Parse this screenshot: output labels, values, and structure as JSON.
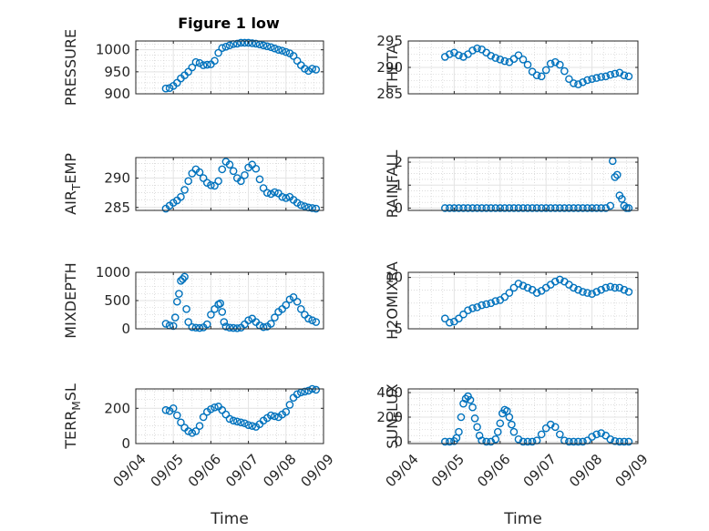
{
  "figure": {
    "title": "Figure 1 low"
  },
  "colors": {
    "marker": "#0072BD",
    "grid": "#e3e3e3",
    "axis": "#262626"
  },
  "time_ticks": [
    "09/04",
    "09/05",
    "09/06",
    "09/07",
    "09/08",
    "09/09"
  ],
  "chart_data": [
    {
      "type": "scatter",
      "title": "Figure 1 low",
      "ylabel": "PRESSURE",
      "xlabel": "",
      "xlim": [
        0,
        5
      ],
      "ylim": [
        900,
        1020
      ],
      "yticks": [
        900,
        950,
        1000
      ],
      "ytick_labels": [
        "900",
        "950",
        "1000"
      ],
      "xticks": [
        0,
        1,
        2,
        3,
        4,
        5
      ],
      "grid": true,
      "x": [
        0.8,
        0.9,
        1.0,
        1.1,
        1.2,
        1.3,
        1.4,
        1.5,
        1.6,
        1.7,
        1.8,
        1.9,
        2.0,
        2.1,
        2.2,
        2.3,
        2.4,
        2.5,
        2.6,
        2.7,
        2.8,
        2.9,
        3.0,
        3.1,
        3.2,
        3.3,
        3.4,
        3.5,
        3.6,
        3.7,
        3.8,
        3.9,
        4.0,
        4.1,
        4.2,
        4.3,
        4.4,
        4.5,
        4.6,
        4.7,
        4.8
      ],
      "y": [
        912,
        913,
        918,
        925,
        935,
        942,
        950,
        960,
        972,
        970,
        965,
        966,
        967,
        975,
        993,
        1004,
        1007,
        1010,
        1013,
        1014,
        1016,
        1016,
        1016,
        1015,
        1014,
        1012,
        1010,
        1008,
        1006,
        1003,
        1000,
        998,
        995,
        992,
        986,
        975,
        965,
        957,
        952,
        957,
        955
      ]
    },
    {
      "type": "scatter",
      "ylabel": "THETA",
      "xlabel": "",
      "xlim": [
        0,
        5
      ],
      "ylim": [
        285,
        295
      ],
      "yticks": [
        285,
        290,
        295
      ],
      "ytick_labels": [
        "285",
        "290",
        "295"
      ],
      "xticks": [
        0,
        1,
        2,
        3,
        4,
        5
      ],
      "grid": true,
      "x": [
        0.8,
        0.9,
        1.0,
        1.1,
        1.2,
        1.3,
        1.4,
        1.5,
        1.6,
        1.7,
        1.8,
        1.9,
        2.0,
        2.1,
        2.2,
        2.3,
        2.4,
        2.5,
        2.6,
        2.7,
        2.8,
        2.9,
        3.0,
        3.1,
        3.2,
        3.3,
        3.4,
        3.5,
        3.6,
        3.7,
        3.8,
        3.9,
        4.0,
        4.1,
        4.2,
        4.3,
        4.4,
        4.5,
        4.6,
        4.7,
        4.8
      ],
      "y": [
        292,
        292.5,
        292.8,
        292.3,
        292.0,
        292.5,
        293.2,
        293.6,
        293.4,
        292.8,
        292.2,
        291.8,
        291.5,
        291.2,
        291.0,
        291.6,
        292.3,
        291.5,
        290.5,
        289.2,
        288.5,
        288.3,
        289.5,
        290.7,
        291.0,
        290.5,
        289.3,
        287.8,
        287.0,
        286.8,
        287.2,
        287.6,
        287.8,
        288.0,
        288.2,
        288.3,
        288.6,
        288.8,
        289.0,
        288.5,
        288.3
      ]
    },
    {
      "type": "scatter",
      "ylabel": "AIR_TEMP",
      "ylabel_main": "AIR",
      "ylabel_sub": "T",
      "ylabel_tail": "EMP",
      "xlabel": "",
      "xlim": [
        0,
        5
      ],
      "ylim": [
        284.5,
        293.5
      ],
      "yticks": [
        285,
        290
      ],
      "ytick_labels": [
        "285",
        "290"
      ],
      "xticks": [
        0,
        1,
        2,
        3,
        4,
        5
      ],
      "grid": true,
      "x": [
        0.8,
        0.9,
        1.0,
        1.1,
        1.2,
        1.3,
        1.4,
        1.5,
        1.6,
        1.7,
        1.8,
        1.9,
        2.0,
        2.1,
        2.2,
        2.3,
        2.4,
        2.5,
        2.6,
        2.7,
        2.8,
        2.9,
        3.0,
        3.1,
        3.2,
        3.3,
        3.4,
        3.5,
        3.6,
        3.7,
        3.8,
        3.9,
        4.0,
        4.1,
        4.2,
        4.3,
        4.4,
        4.5,
        4.6,
        4.7,
        4.8
      ],
      "y": [
        284.8,
        285.3,
        285.8,
        286.2,
        286.8,
        288.0,
        289.5,
        290.8,
        291.5,
        291.0,
        290.0,
        289.2,
        288.8,
        288.7,
        289.5,
        291.5,
        292.8,
        292.3,
        291.2,
        290.0,
        289.5,
        290.5,
        291.8,
        292.3,
        291.6,
        289.8,
        288.3,
        287.5,
        287.3,
        287.6,
        287.4,
        286.8,
        286.6,
        286.8,
        286.3,
        285.8,
        285.4,
        285.2,
        285.0,
        284.9,
        284.8
      ]
    },
    {
      "type": "scatter",
      "ylabel": "RAINFALL",
      "xlabel": "",
      "xlim": [
        0,
        5
      ],
      "ylim": [
        -0.1,
        2.2
      ],
      "yticks": [
        0,
        1,
        2
      ],
      "ytick_labels": [
        "0",
        "1",
        "2"
      ],
      "xticks": [
        0,
        1,
        2,
        3,
        4,
        5
      ],
      "grid": true,
      "x": [
        0.8,
        0.9,
        1.0,
        1.1,
        1.2,
        1.3,
        1.4,
        1.5,
        1.6,
        1.7,
        1.8,
        1.9,
        2.0,
        2.1,
        2.2,
        2.3,
        2.4,
        2.5,
        2.6,
        2.7,
        2.8,
        2.9,
        3.0,
        3.1,
        3.2,
        3.3,
        3.4,
        3.5,
        3.6,
        3.7,
        3.8,
        3.9,
        4.0,
        4.1,
        4.2,
        4.3,
        4.4,
        4.45,
        4.5,
        4.55,
        4.6,
        4.65,
        4.7,
        4.75,
        4.8
      ],
      "y": [
        0,
        0,
        0,
        0,
        0,
        0,
        0,
        0,
        0,
        0,
        0,
        0,
        0,
        0,
        0,
        0,
        0,
        0,
        0,
        0,
        0,
        0,
        0,
        0,
        0,
        0,
        0,
        0,
        0,
        0,
        0,
        0,
        0,
        0,
        0,
        0,
        0.1,
        2.05,
        1.35,
        1.45,
        0.55,
        0.4,
        0.1,
        0,
        0
      ]
    },
    {
      "type": "scatter",
      "ylabel": "MIXDEPTH",
      "xlabel": "",
      "xlim": [
        0,
        5
      ],
      "ylim": [
        0,
        1000
      ],
      "yticks": [
        0,
        500,
        1000
      ],
      "ytick_labels": [
        "0",
        "500",
        "1000"
      ],
      "xticks": [
        0,
        1,
        2,
        3,
        4,
        5
      ],
      "grid": true,
      "x": [
        0.8,
        0.9,
        1.0,
        1.05,
        1.1,
        1.15,
        1.2,
        1.25,
        1.3,
        1.35,
        1.4,
        1.5,
        1.6,
        1.7,
        1.8,
        1.9,
        2.0,
        2.1,
        2.2,
        2.25,
        2.3,
        2.35,
        2.4,
        2.5,
        2.6,
        2.7,
        2.8,
        2.9,
        3.0,
        3.1,
        3.2,
        3.3,
        3.4,
        3.5,
        3.6,
        3.7,
        3.8,
        3.9,
        4.0,
        4.1,
        4.2,
        4.3,
        4.4,
        4.5,
        4.6,
        4.7,
        4.8
      ],
      "y": [
        90,
        60,
        50,
        200,
        480,
        620,
        850,
        880,
        920,
        350,
        120,
        30,
        20,
        15,
        25,
        80,
        250,
        350,
        430,
        450,
        300,
        120,
        40,
        20,
        15,
        10,
        20,
        80,
        150,
        180,
        120,
        60,
        30,
        40,
        90,
        200,
        300,
        350,
        420,
        520,
        560,
        480,
        350,
        250,
        180,
        150,
        120
      ]
    },
    {
      "type": "scatter",
      "ylabel": "H2OMIXRA",
      "xlabel": "",
      "xlim": [
        0,
        5
      ],
      "ylim": [
        5,
        10.5
      ],
      "yticks": [
        5,
        10
      ],
      "ytick_labels": [
        "5",
        "10"
      ],
      "xticks": [
        0,
        1,
        2,
        3,
        4,
        5
      ],
      "grid": true,
      "x": [
        0.8,
        0.9,
        1.0,
        1.1,
        1.2,
        1.3,
        1.4,
        1.5,
        1.6,
        1.7,
        1.8,
        1.9,
        2.0,
        2.1,
        2.2,
        2.3,
        2.4,
        2.5,
        2.6,
        2.7,
        2.8,
        2.9,
        3.0,
        3.1,
        3.2,
        3.3,
        3.4,
        3.5,
        3.6,
        3.7,
        3.8,
        3.9,
        4.0,
        4.1,
        4.2,
        4.3,
        4.4,
        4.5,
        4.6,
        4.7,
        4.8
      ],
      "y": [
        6.0,
        5.6,
        5.7,
        6.0,
        6.4,
        6.8,
        7.0,
        7.1,
        7.3,
        7.4,
        7.5,
        7.7,
        7.8,
        8.1,
        8.5,
        9.0,
        9.4,
        9.2,
        9.0,
        8.8,
        8.5,
        8.7,
        9.0,
        9.3,
        9.6,
        9.8,
        9.6,
        9.3,
        9.0,
        8.8,
        8.6,
        8.5,
        8.4,
        8.6,
        8.8,
        9.0,
        9.1,
        9.0,
        9.0,
        8.8,
        8.6
      ]
    },
    {
      "type": "scatter",
      "ylabel": "TERR_MSL",
      "ylabel_main": "TERR",
      "ylabel_sub": "M",
      "ylabel_tail": "SL",
      "xlabel": "Time",
      "xlim": [
        0,
        5
      ],
      "ylim": [
        0,
        310
      ],
      "yticks": [
        0,
        200
      ],
      "ytick_labels": [
        "0",
        "200"
      ],
      "xticks": [
        0,
        1,
        2,
        3,
        4,
        5
      ],
      "xtick_labels": [
        "09/04",
        "09/05",
        "09/06",
        "09/07",
        "09/08",
        "09/09"
      ],
      "grid": true,
      "x": [
        0.8,
        0.9,
        1.0,
        1.1,
        1.2,
        1.3,
        1.4,
        1.5,
        1.6,
        1.7,
        1.8,
        1.9,
        2.0,
        2.1,
        2.2,
        2.3,
        2.4,
        2.5,
        2.6,
        2.7,
        2.8,
        2.9,
        3.0,
        3.1,
        3.2,
        3.3,
        3.4,
        3.5,
        3.6,
        3.7,
        3.8,
        3.9,
        4.0,
        4.1,
        4.2,
        4.3,
        4.4,
        4.5,
        4.6,
        4.7,
        4.8
      ],
      "y": [
        190,
        185,
        200,
        160,
        120,
        90,
        70,
        60,
        70,
        100,
        150,
        180,
        195,
        205,
        210,
        190,
        165,
        140,
        130,
        125,
        120,
        115,
        105,
        100,
        95,
        110,
        130,
        145,
        160,
        155,
        150,
        165,
        180,
        220,
        260,
        280,
        290,
        295,
        300,
        310,
        305
      ]
    },
    {
      "type": "scatter",
      "ylabel": "SUN_FLUX",
      "ylabel_main": "SUN",
      "ylabel_sub": "F",
      "ylabel_tail": "LUX",
      "xlabel": "Time",
      "xlim": [
        0,
        5
      ],
      "ylim": [
        -15,
        430
      ],
      "yticks": [
        0,
        200,
        400
      ],
      "ytick_labels": [
        "0",
        "200",
        "400"
      ],
      "xticks": [
        0,
        1,
        2,
        3,
        4,
        5
      ],
      "xtick_labels": [
        "09/04",
        "09/05",
        "09/06",
        "09/07",
        "09/08",
        "09/09"
      ],
      "grid": true,
      "x": [
        0.8,
        0.9,
        1.0,
        1.05,
        1.1,
        1.15,
        1.2,
        1.25,
        1.3,
        1.35,
        1.4,
        1.45,
        1.5,
        1.55,
        1.6,
        1.7,
        1.8,
        1.9,
        1.95,
        2.0,
        2.05,
        2.1,
        2.15,
        2.2,
        2.25,
        2.3,
        2.4,
        2.5,
        2.6,
        2.7,
        2.8,
        2.9,
        3.0,
        3.1,
        3.2,
        3.3,
        3.4,
        3.5,
        3.6,
        3.7,
        3.8,
        3.9,
        4.0,
        4.1,
        4.2,
        4.3,
        4.4,
        4.5,
        4.6,
        4.7,
        4.8
      ],
      "y": [
        0,
        0,
        5,
        30,
        80,
        200,
        310,
        350,
        370,
        340,
        280,
        190,
        120,
        50,
        10,
        0,
        0,
        20,
        80,
        150,
        230,
        260,
        250,
        200,
        140,
        80,
        20,
        0,
        0,
        0,
        10,
        60,
        110,
        140,
        120,
        60,
        10,
        0,
        0,
        0,
        0,
        10,
        40,
        60,
        70,
        50,
        20,
        5,
        0,
        0,
        0
      ]
    }
  ]
}
